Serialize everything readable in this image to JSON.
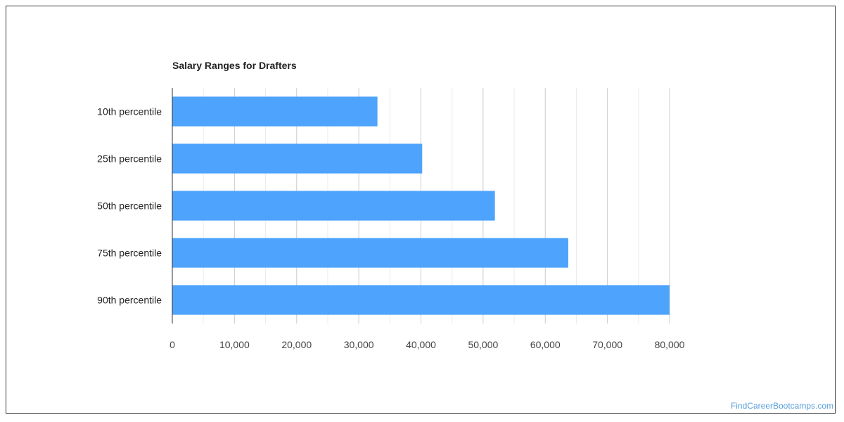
{
  "chart_data": {
    "type": "bar",
    "orientation": "horizontal",
    "title": "Salary Ranges for Drafters",
    "categories": [
      "10th percentile",
      "25th percentile",
      "50th percentile",
      "75th percentile",
      "90th percentile"
    ],
    "values": [
      33000,
      40200,
      51900,
      63700,
      80000
    ],
    "xlim": [
      0,
      80000
    ],
    "xticks": [
      "0",
      "10,000",
      "20,000",
      "30,000",
      "40,000",
      "50,000",
      "60,000",
      "70,000",
      "80,000"
    ],
    "xlabel": "",
    "ylabel": "",
    "grid": true,
    "bar_color": "#4ea3fc"
  },
  "watermark": "FindCareerBootcamps.com"
}
